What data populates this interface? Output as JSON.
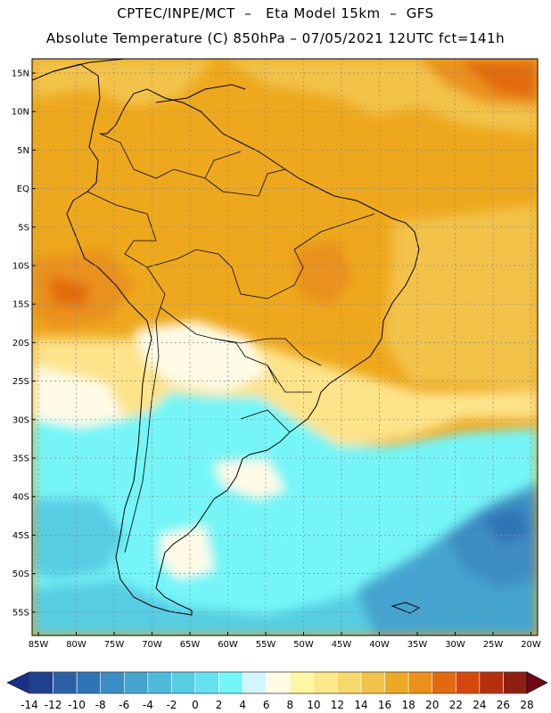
{
  "title_line1": "CPTEC/INPE/MCT  –   Eta Model 15km  –  GFS",
  "title_line2": "Absolute Temperature (C) 850hPa – 07/05/2021 12UTC fct=141h",
  "lat_labels": [
    "15N",
    "10N",
    "5N",
    "EQ",
    "5S",
    "10S",
    "15S",
    "20S",
    "25S",
    "30S",
    "35S",
    "40S",
    "45S",
    "50S",
    "55S"
  ],
  "lon_labels": [
    "85W",
    "80W",
    "75W",
    "70W",
    "65W",
    "60W",
    "55W",
    "50W",
    "45W",
    "40W",
    "35W",
    "30W",
    "25W",
    "20W"
  ],
  "colorbar": {
    "labels": [
      "-14",
      "-12",
      "-10",
      "-8",
      "-6",
      "-4",
      "-2",
      "0",
      "2",
      "4",
      "6",
      "8",
      "10",
      "12",
      "14",
      "16",
      "18",
      "20",
      "22",
      "24",
      "26",
      "28"
    ],
    "colors": [
      "#1f3f8f",
      "#2b5fa6",
      "#2f74b5",
      "#3c8dc4",
      "#45a4cf",
      "#4dbad9",
      "#56cde3",
      "#63e1ee",
      "#74f5f7",
      "#d2f6fb",
      "#fffbe6",
      "#fdf6a3",
      "#fbe88a",
      "#f7d86a",
      "#f2c24a",
      "#eda926",
      "#e9911a",
      "#e26a0e",
      "#d4480d",
      "#b4300d",
      "#8e1e10"
    ],
    "left_arrow_color": "#1a2f86",
    "right_arrow_color": "#6e0a18"
  },
  "field_colors": {
    "hot": "#eea81d",
    "warm": "#f2c24a",
    "veryhot": "#e9911a",
    "hotspot": "#e26a0e",
    "mild": "#fde38a",
    "cool": "#fffbe6",
    "cold": "#74f5f7",
    "colder": "#56cde3",
    "coldest": "#3c8dc4"
  }
}
